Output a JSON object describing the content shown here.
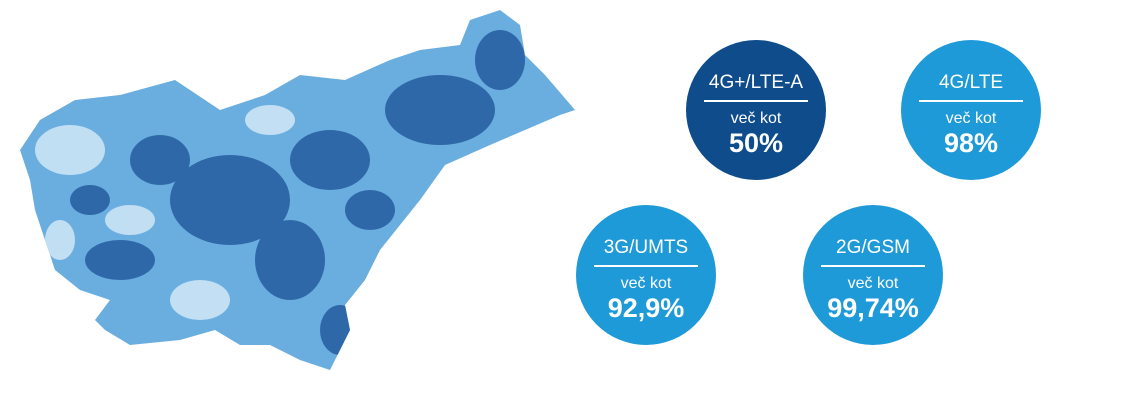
{
  "badges": [
    {
      "label": "4G+/LTE-A",
      "prefix": "več kot",
      "value": "50%"
    },
    {
      "label": "4G/LTE",
      "prefix": "več kot",
      "value": "98%"
    },
    {
      "label": "3G/UMTS",
      "prefix": "več kot",
      "value": "92,9%"
    },
    {
      "label": "2G/GSM",
      "prefix": "več kot",
      "value": "99,74%"
    }
  ]
}
